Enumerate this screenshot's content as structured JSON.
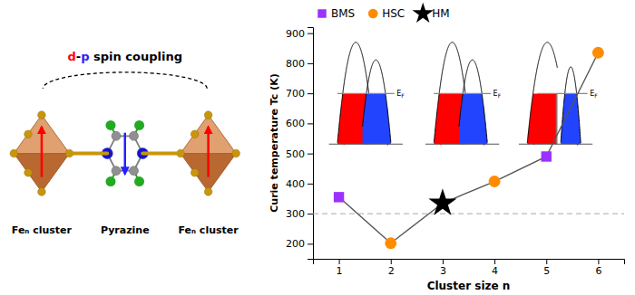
{
  "chart_data": {
    "type": "line",
    "xlabel": "Cluster size n",
    "ylabel": "Curie temperature Tc (K)",
    "xlim": [
      0.5,
      6.5
    ],
    "ylim": [
      150,
      920
    ],
    "xticks": [
      1,
      2,
      3,
      4,
      5,
      6
    ],
    "yticks": [
      200,
      300,
      400,
      500,
      600,
      700,
      800,
      900
    ],
    "grid": false,
    "legend": "upper left",
    "series": [
      {
        "type": "line",
        "color": "#555555",
        "x": [
          1,
          2,
          3,
          4,
          5,
          6
        ],
        "values": [
          355,
          202,
          335,
          407,
          490,
          835
        ]
      },
      {
        "name": "BMS",
        "type": "scatter",
        "marker": "square",
        "color": "#9B30FF",
        "x": [
          1,
          5
        ],
        "values": [
          355,
          490
        ]
      },
      {
        "name": "HSC",
        "type": "scatter",
        "marker": "circle",
        "color": "#FF8C00",
        "x": [
          2,
          4,
          6
        ],
        "values": [
          202,
          407,
          835
        ]
      },
      {
        "name": "HM",
        "type": "scatter",
        "marker": "star",
        "color": "#000000",
        "x": [
          3
        ],
        "values": [
          335
        ]
      },
      {
        "type": "hline",
        "color": "#aaaaaa",
        "line_style": "dashed",
        "values": [
          300
        ]
      }
    ],
    "annotations": [
      "d-p spin coupling",
      "Feₙ cluster",
      "Pyrazine",
      "Feₙ cluster"
    ],
    "insets": [
      {
        "type": "BMS",
        "label": "EF"
      },
      {
        "type": "HSC",
        "label": "EF"
      },
      {
        "type": "HM",
        "label": "EF"
      }
    ]
  }
}
